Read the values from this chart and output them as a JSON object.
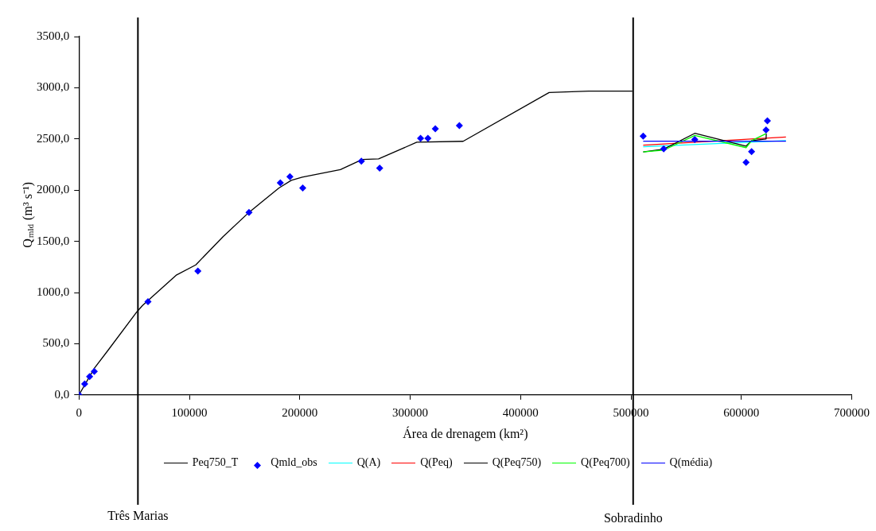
{
  "chart_data": {
    "type": "line",
    "xlabel": "Área de drenagem (km²)",
    "ylabel": "Q$_{mld}$ (m³ s⁻¹)",
    "xlim": [
      0,
      700000
    ],
    "xticks": [
      0,
      100000,
      200000,
      300000,
      400000,
      500000,
      600000,
      700000
    ],
    "ylim": [
      0,
      3500
    ],
    "yticks": [
      {
        "value": 0,
        "label": "0,0"
      },
      {
        "value": 500,
        "label": "500,0"
      },
      {
        "value": 1000,
        "label": "1000,0"
      },
      {
        "value": 1500,
        "label": "1500,0"
      },
      {
        "value": 2000,
        "label": "2000,0"
      },
      {
        "value": 2500,
        "label": "2500,0"
      },
      {
        "value": 3000,
        "label": "3000,0"
      },
      {
        "value": 3500,
        "label": "3500,0"
      }
    ],
    "grid": false,
    "legend": "bottom",
    "ref_lines": [
      {
        "axis": "x",
        "value": 53400,
        "label": "Três Marias",
        "color": "#000000"
      },
      {
        "axis": "x",
        "value": 502000,
        "label": "Sobradinho",
        "color": "#000000"
      }
    ],
    "series": [
      {
        "name": "Peq750_T",
        "color": "#000000",
        "marker": "none",
        "x": [
          0,
          13870,
          26700,
          52650,
          57600,
          88460,
          105800,
          130500,
          154000,
          181150,
          192300,
          202200,
          236800,
          256600,
          271400,
          306000,
          348000,
          425900,
          461700,
          501300
        ],
        "values": [
          0,
          259,
          441,
          814,
          874,
          1172,
          1270,
          1545,
          1783,
          2021,
          2096,
          2126,
          2200,
          2299,
          2305,
          2468,
          2477,
          2954,
          2967,
          2967
        ]
      },
      {
        "name": "Qmld_obs",
        "type": "scatter",
        "color": "#0000ff",
        "marker": "diamond",
        "x": [
          0,
          5190,
          9640,
          13870,
          62510,
          107700,
          154000,
          182400,
          191100,
          202700,
          255800,
          272400,
          309400,
          316100,
          322800,
          344600,
          511100,
          529700,
          557800,
          604300,
          609300,
          622400,
          623600
        ],
        "values": [
          0,
          107,
          179,
          230,
          910,
          1210,
          1783,
          2072,
          2131,
          2021,
          2283,
          2215,
          2507,
          2507,
          2600,
          2630,
          2528,
          2403,
          2495,
          2272,
          2376,
          2588,
          2677
        ]
      },
      {
        "name": "Q(A)",
        "color": "#00ffff",
        "marker": "none",
        "x": [
          511100,
          640400
        ],
        "values": [
          2424,
          2484
        ]
      },
      {
        "name": "Q(Peq)",
        "color": "#ff0000",
        "marker": "none",
        "x": [
          511100,
          640400
        ],
        "values": [
          2439,
          2519
        ]
      },
      {
        "name": "Q(Peq750)",
        "color": "#000000",
        "marker": "none",
        "x": [
          511100,
          529700,
          557800,
          604300,
          609300,
          622400,
          622600
        ],
        "values": [
          2373,
          2400,
          2555,
          2430,
          2484,
          2500,
          2552
        ]
      },
      {
        "name": "Q(Peq700)",
        "color": "#00ff00",
        "marker": "none",
        "x": [
          511100,
          529700,
          557800,
          604300,
          609300,
          622400
        ],
        "values": [
          2373,
          2390,
          2534,
          2415,
          2484,
          2552
        ]
      },
      {
        "name": "Q(média)",
        "color": "#0000ff",
        "marker": "none",
        "x": [
          511100,
          640400
        ],
        "values": [
          2478,
          2478
        ]
      }
    ]
  }
}
